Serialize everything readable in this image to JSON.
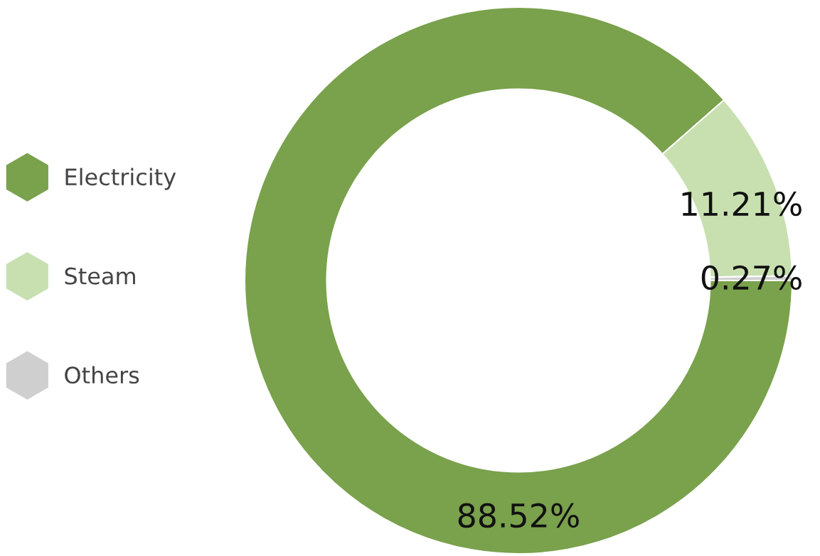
{
  "chart_data": {
    "type": "donut",
    "categories": [
      "Electricity",
      "Steam",
      "Others"
    ],
    "values": [
      88.52,
      11.21,
      0.27
    ],
    "colors": [
      "#7aa14c",
      "#c8e0b0",
      "#cfcfcf"
    ],
    "value_labels": [
      "88.52%",
      "11.21%",
      "0.27%"
    ],
    "legend": "left"
  }
}
